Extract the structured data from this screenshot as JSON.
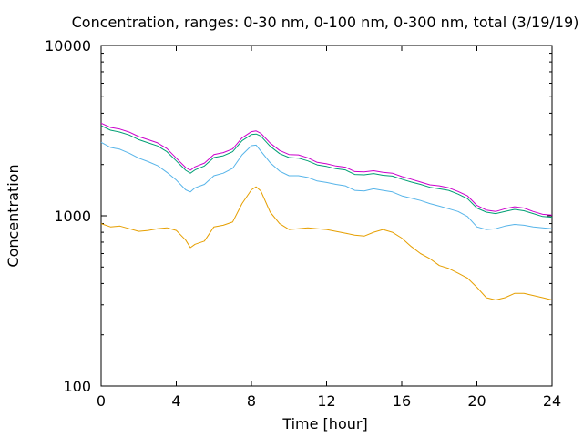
{
  "chart_data": {
    "type": "line",
    "title": "Concentration, ranges: 0-30 nm, 0-100 nm, 0-300 nm, total (3/19/19)",
    "xlabel": "Time [hour]",
    "ylabel": "Concentration",
    "xlim": [
      0,
      24
    ],
    "ylim": [
      100,
      10000
    ],
    "yscale": "log",
    "grid": false,
    "legend": "none",
    "x_ticks": [
      "0",
      "4",
      "8",
      "12",
      "16",
      "20",
      "24"
    ],
    "y_ticks": [
      "100",
      "1000",
      "10000"
    ],
    "x": [
      0,
      0.5,
      1,
      1.5,
      2,
      2.5,
      3,
      3.5,
      4,
      4.5,
      4.75,
      5,
      5.5,
      6,
      6.5,
      7,
      7.5,
      8,
      8.25,
      8.5,
      9,
      9.5,
      10,
      10.5,
      11,
      11.5,
      12,
      12.5,
      13,
      13.5,
      14,
      14.5,
      15,
      15.5,
      16,
      16.5,
      17,
      17.5,
      18,
      18.5,
      19,
      19.5,
      20,
      20.5,
      21,
      21.5,
      22,
      22.5,
      23,
      23.5,
      24
    ],
    "series": [
      {
        "color": "#cc00cc",
        "values": [
          3500,
          3300,
          3230,
          3100,
          2920,
          2800,
          2680,
          2480,
          2180,
          1920,
          1850,
          1940,
          2040,
          2290,
          2350,
          2470,
          2870,
          3120,
          3150,
          3050,
          2670,
          2420,
          2290,
          2280,
          2190,
          2060,
          2020,
          1960,
          1930,
          1820,
          1810,
          1840,
          1800,
          1780,
          1700,
          1640,
          1580,
          1520,
          1500,
          1460,
          1390,
          1310,
          1150,
          1080,
          1060,
          1100,
          1130,
          1110,
          1060,
          1020,
          1010
        ]
      },
      {
        "color": "#009e73",
        "values": [
          3380,
          3180,
          3100,
          2980,
          2800,
          2680,
          2570,
          2380,
          2100,
          1850,
          1780,
          1860,
          1960,
          2200,
          2250,
          2380,
          2760,
          3000,
          3020,
          2940,
          2560,
          2320,
          2200,
          2180,
          2100,
          1990,
          1950,
          1890,
          1860,
          1750,
          1740,
          1770,
          1730,
          1710,
          1640,
          1580,
          1530,
          1470,
          1440,
          1410,
          1340,
          1260,
          1110,
          1050,
          1030,
          1060,
          1090,
          1070,
          1030,
          990,
          980
        ]
      },
      {
        "color": "#56b4e9",
        "values": [
          2700,
          2520,
          2460,
          2330,
          2180,
          2080,
          1970,
          1800,
          1620,
          1420,
          1380,
          1460,
          1530,
          1720,
          1780,
          1900,
          2280,
          2580,
          2600,
          2400,
          2050,
          1830,
          1720,
          1720,
          1680,
          1600,
          1570,
          1530,
          1500,
          1410,
          1400,
          1440,
          1410,
          1380,
          1310,
          1270,
          1230,
          1180,
          1140,
          1100,
          1060,
          990,
          860,
          830,
          840,
          870,
          890,
          880,
          860,
          850,
          840
        ]
      },
      {
        "color": "#e69f00",
        "values": [
          900,
          860,
          870,
          840,
          810,
          820,
          840,
          850,
          820,
          720,
          650,
          680,
          710,
          860,
          880,
          920,
          1180,
          1420,
          1480,
          1400,
          1050,
          900,
          830,
          840,
          850,
          840,
          830,
          810,
          790,
          770,
          760,
          800,
          830,
          800,
          740,
          660,
          600,
          560,
          510,
          490,
          460,
          430,
          380,
          330,
          320,
          330,
          350,
          350,
          340,
          330,
          320
        ]
      }
    ]
  }
}
